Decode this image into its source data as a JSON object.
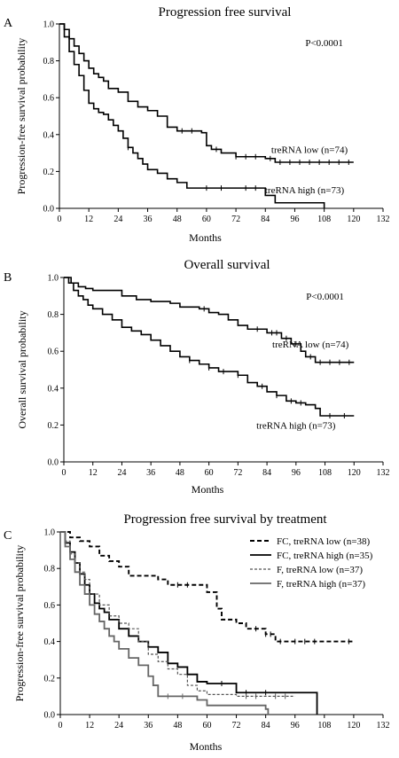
{
  "chart_data": [
    {
      "type": "line",
      "panel_label": "A",
      "title": "Progression free survival",
      "xlabel": "Months",
      "ylabel": "Progression-free survival probability",
      "xlim": [
        0,
        132
      ],
      "ylim": [
        0,
        1
      ],
      "xticks": [
        0,
        12,
        24,
        36,
        48,
        60,
        72,
        84,
        96,
        108,
        120,
        132
      ],
      "yticks": [
        0,
        0.2,
        0.4,
        0.6,
        0.8,
        1
      ],
      "annotations": [
        {
          "text": "P<0.0001",
          "x": 108,
          "y": 0.9
        }
      ],
      "series": [
        {
          "name": "treRNA low (n=74)",
          "label_pos": {
            "x": 102,
            "y": 0.32
          },
          "style": "solid",
          "color": "#000000",
          "x": [
            0,
            2,
            4,
            6,
            8,
            10,
            12,
            14,
            16,
            18,
            20,
            24,
            28,
            32,
            36,
            40,
            44,
            48,
            56,
            58,
            60,
            62,
            66,
            72,
            80,
            84,
            88,
            120
          ],
          "y": [
            1,
            0.97,
            0.92,
            0.88,
            0.84,
            0.8,
            0.76,
            0.73,
            0.71,
            0.69,
            0.65,
            0.63,
            0.58,
            0.55,
            0.53,
            0.5,
            0.44,
            0.42,
            0.42,
            0.41,
            0.34,
            0.32,
            0.3,
            0.28,
            0.28,
            0.27,
            0.25,
            0.25
          ],
          "censors": [
            50,
            54,
            64,
            72,
            76,
            80,
            86,
            90,
            94,
            98,
            102,
            106,
            110,
            114,
            118
          ]
        },
        {
          "name": "treRNA high (n=73)",
          "label_pos": {
            "x": 100,
            "y": 0.1
          },
          "style": "solid",
          "color": "#000000",
          "x": [
            0,
            2,
            4,
            6,
            8,
            10,
            12,
            14,
            16,
            18,
            20,
            22,
            24,
            26,
            28,
            30,
            32,
            34,
            36,
            40,
            44,
            48,
            52,
            60,
            72,
            84,
            88,
            108
          ],
          "y": [
            1,
            0.93,
            0.85,
            0.78,
            0.72,
            0.64,
            0.57,
            0.54,
            0.52,
            0.51,
            0.48,
            0.45,
            0.42,
            0.38,
            0.33,
            0.3,
            0.27,
            0.24,
            0.21,
            0.19,
            0.16,
            0.14,
            0.11,
            0.11,
            0.11,
            0.07,
            0.03,
            0
          ],
          "censors": [
            28,
            60,
            66,
            76,
            80
          ]
        }
      ]
    },
    {
      "type": "line",
      "panel_label": "B",
      "title": "Overall survival",
      "xlabel": "Months",
      "ylabel": "Overall survival probability",
      "xlim": [
        0,
        132
      ],
      "ylim": [
        0,
        1
      ],
      "xticks": [
        0,
        12,
        24,
        36,
        48,
        60,
        72,
        84,
        96,
        108,
        120,
        132
      ],
      "yticks": [
        0,
        0.2,
        0.4,
        0.6,
        0.8,
        1
      ],
      "annotations": [
        {
          "text": "P<0.0001",
          "x": 108,
          "y": 0.9
        }
      ],
      "series": [
        {
          "name": "treRNA low (n=74)",
          "label_pos": {
            "x": 102,
            "y": 0.64
          },
          "style": "solid",
          "color": "#000000",
          "x": [
            0,
            3,
            6,
            9,
            12,
            24,
            30,
            36,
            44,
            48,
            56,
            60,
            64,
            68,
            72,
            76,
            84,
            90,
            94,
            98,
            100,
            104,
            120
          ],
          "y": [
            1,
            0.97,
            0.95,
            0.94,
            0.93,
            0.9,
            0.88,
            0.87,
            0.86,
            0.84,
            0.83,
            0.81,
            0.8,
            0.77,
            0.74,
            0.72,
            0.7,
            0.67,
            0.64,
            0.6,
            0.57,
            0.54,
            0.54
          ],
          "censors": [
            58,
            80,
            86,
            88,
            92,
            96,
            102,
            106,
            110,
            114,
            118
          ]
        },
        {
          "name": "treRNA high (n=73)",
          "label_pos": {
            "x": 96,
            "y": 0.2
          },
          "style": "solid",
          "color": "#000000",
          "x": [
            0,
            2,
            4,
            6,
            8,
            10,
            12,
            16,
            20,
            24,
            28,
            32,
            36,
            40,
            44,
            48,
            52,
            56,
            60,
            64,
            72,
            76,
            80,
            84,
            88,
            92,
            96,
            100,
            104,
            106,
            120
          ],
          "y": [
            1,
            0.97,
            0.93,
            0.9,
            0.88,
            0.85,
            0.83,
            0.8,
            0.77,
            0.73,
            0.71,
            0.69,
            0.66,
            0.63,
            0.6,
            0.57,
            0.55,
            0.53,
            0.51,
            0.49,
            0.47,
            0.43,
            0.41,
            0.38,
            0.36,
            0.33,
            0.32,
            0.31,
            0.29,
            0.25,
            0.25
          ],
          "censors": [
            52,
            60,
            66,
            72,
            82,
            88,
            94,
            98,
            110,
            116
          ]
        }
      ]
    },
    {
      "type": "line",
      "panel_label": "C",
      "title": "Progression free survival by treatment",
      "xlabel": "Months",
      "ylabel": "Progression-free survival probability",
      "xlim": [
        0,
        132
      ],
      "ylim": [
        0,
        1
      ],
      "xticks": [
        0,
        12,
        24,
        36,
        48,
        60,
        72,
        84,
        96,
        108,
        120,
        132
      ],
      "yticks": [
        0,
        0.2,
        0.4,
        0.6,
        0.8,
        1
      ],
      "legend": "top-right",
      "series": [
        {
          "name": "FC, treRNA low (n=38)",
          "style": "dashed-bold",
          "color": "#000000",
          "x": [
            0,
            4,
            8,
            12,
            16,
            20,
            24,
            28,
            34,
            40,
            44,
            52,
            60,
            64,
            66,
            72,
            76,
            84,
            88,
            120
          ],
          "y": [
            1,
            0.97,
            0.95,
            0.92,
            0.87,
            0.84,
            0.81,
            0.76,
            0.76,
            0.74,
            0.71,
            0.71,
            0.67,
            0.58,
            0.52,
            0.5,
            0.47,
            0.44,
            0.4,
            0.4
          ],
          "censors": [
            48,
            52,
            80,
            84,
            86,
            90,
            96,
            100,
            104,
            118
          ]
        },
        {
          "name": "FC, treRNA high (n=35)",
          "style": "solid-bold",
          "color": "#000000",
          "x": [
            0,
            2,
            4,
            6,
            8,
            10,
            12,
            14,
            16,
            18,
            20,
            24,
            28,
            32,
            36,
            40,
            44,
            48,
            52,
            56,
            60,
            72,
            104,
            105
          ],
          "y": [
            1,
            0.94,
            0.89,
            0.83,
            0.77,
            0.71,
            0.66,
            0.61,
            0.58,
            0.56,
            0.52,
            0.47,
            0.43,
            0.4,
            0.37,
            0.34,
            0.28,
            0.26,
            0.22,
            0.18,
            0.17,
            0.12,
            0.12,
            0
          ],
          "censors": [
            66,
            76,
            84
          ]
        },
        {
          "name": "F, treRNA low (n=37)",
          "style": "dashed-thin",
          "color": "#555555",
          "x": [
            0,
            2,
            4,
            6,
            8,
            10,
            12,
            16,
            20,
            24,
            28,
            32,
            36,
            40,
            44,
            48,
            52,
            56,
            60,
            72,
            96
          ],
          "y": [
            1,
            0.95,
            0.88,
            0.83,
            0.78,
            0.74,
            0.66,
            0.6,
            0.54,
            0.5,
            0.47,
            0.4,
            0.33,
            0.29,
            0.25,
            0.22,
            0.16,
            0.13,
            0.11,
            0.1,
            0.1
          ],
          "censors": [
            76,
            80,
            88,
            92
          ]
        },
        {
          "name": "F, treRNA high (n=37)",
          "style": "solid-gray",
          "color": "#666666",
          "x": [
            0,
            2,
            4,
            6,
            8,
            10,
            12,
            14,
            16,
            18,
            20,
            22,
            24,
            28,
            32,
            36,
            38,
            40,
            48,
            56,
            60,
            72,
            84,
            85
          ],
          "y": [
            1,
            0.92,
            0.85,
            0.78,
            0.71,
            0.66,
            0.6,
            0.55,
            0.51,
            0.47,
            0.43,
            0.4,
            0.36,
            0.31,
            0.27,
            0.21,
            0.16,
            0.1,
            0.1,
            0.08,
            0.05,
            0.05,
            0.03,
            0
          ],
          "censors": [
            44,
            50
          ]
        }
      ]
    }
  ]
}
